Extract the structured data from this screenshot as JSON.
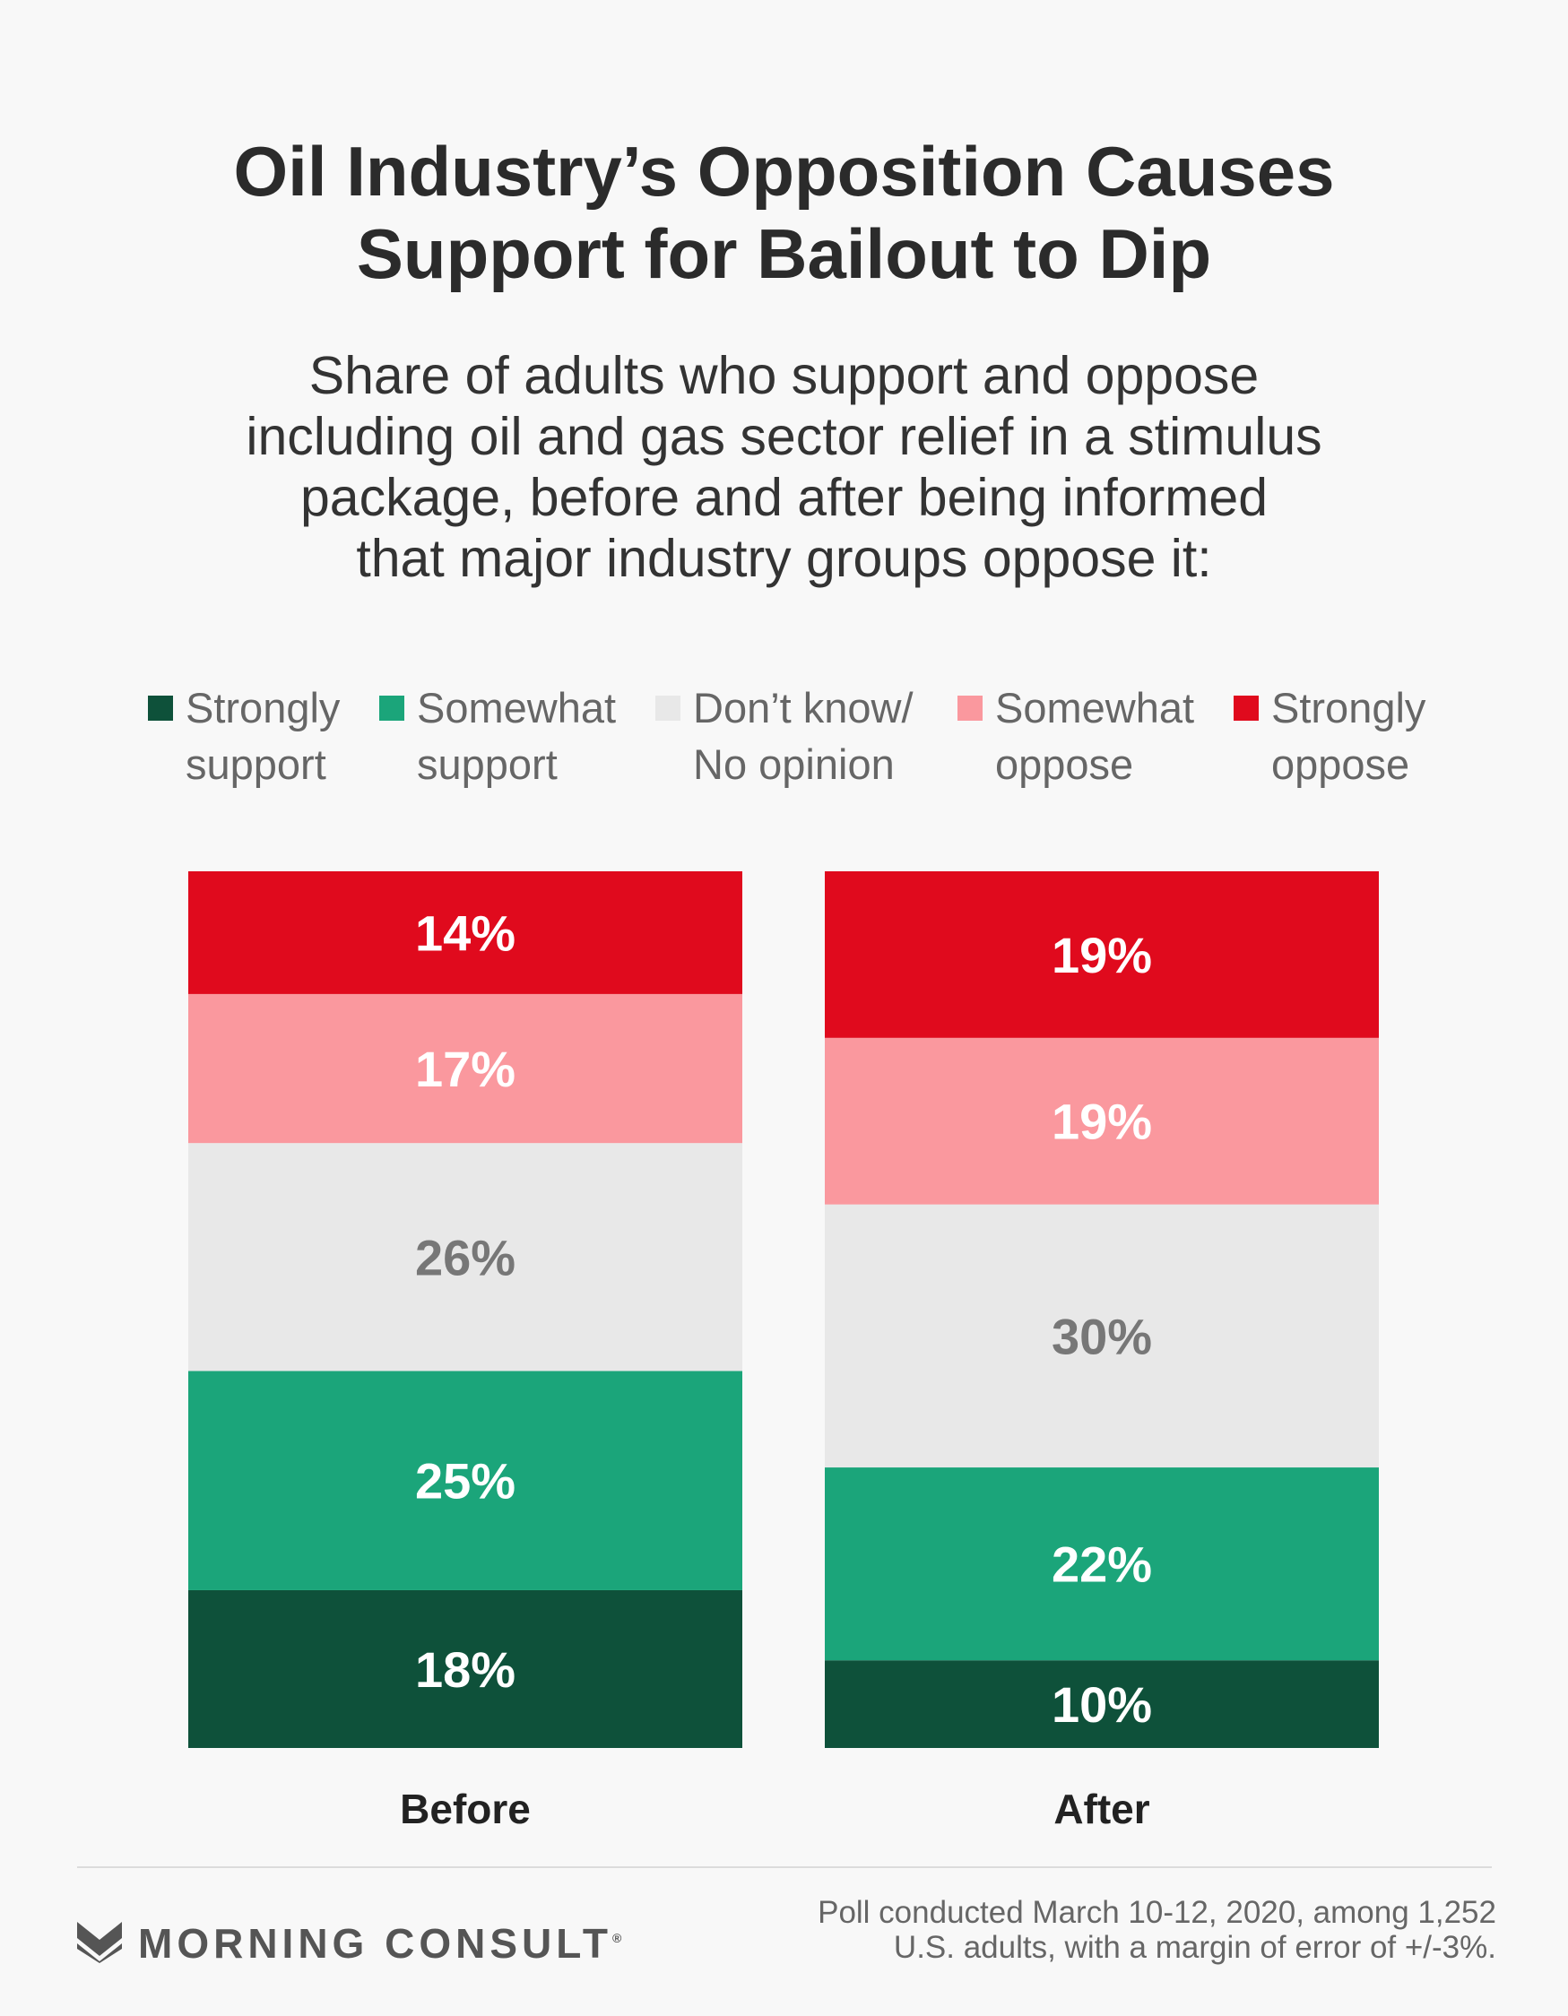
{
  "title": {
    "line1": "Oil Industry’s Opposition Causes",
    "line2": "Support for Bailout to Dip"
  },
  "subtitle": {
    "line1": "Share of adults who support and oppose",
    "line2": "including oil and gas sector relief in a stimulus",
    "line3": "package, before and after being informed",
    "line4": "that major industry groups oppose it:"
  },
  "legend": [
    {
      "line1": "Strongly",
      "line2": "support",
      "color": "#0e513a"
    },
    {
      "line1": "Somewhat",
      "line2": "support",
      "color": "#1ba57a"
    },
    {
      "line1": "Don’t know/",
      "line2": "No opinion",
      "color": "#e8e8e8"
    },
    {
      "line1": "Somewhat",
      "line2": "oppose",
      "color": "#fa989e"
    },
    {
      "line1": "Strongly",
      "line2": "oppose",
      "color": "#e00a1d"
    }
  ],
  "chart_data": {
    "type": "bar",
    "stacked": true,
    "categories": [
      "Before",
      "After"
    ],
    "series": [
      {
        "name": "Strongly support",
        "values": [
          18,
          10
        ],
        "labels": [
          "18%",
          "10%"
        ],
        "color": "#0e513a",
        "label_color": "#ffffff"
      },
      {
        "name": "Somewhat support",
        "values": [
          25,
          22
        ],
        "labels": [
          "25%",
          "22%"
        ],
        "color": "#1ba57a",
        "label_color": "#ffffff"
      },
      {
        "name": "Don’t know/No opinion",
        "values": [
          26,
          30
        ],
        "labels": [
          "26%",
          "30%"
        ],
        "color": "#e8e8e8",
        "label_color": "#777777"
      },
      {
        "name": "Somewhat oppose",
        "values": [
          17,
          19
        ],
        "labels": [
          "17%",
          "19%"
        ],
        "color": "#fa989e",
        "label_color": "#ffffff"
      },
      {
        "name": "Strongly oppose",
        "values": [
          14,
          19
        ],
        "labels": [
          "14%",
          "19%"
        ],
        "color": "#e00a1d",
        "label_color": "#ffffff"
      }
    ]
  },
  "brand": {
    "name": "MORNING CONSULT",
    "mark": "®"
  },
  "footnote": {
    "line1": "Poll conducted March 10-12, 2020, among 1,252",
    "line2": "U.S. adults, with a margin of error of +/-3%."
  }
}
